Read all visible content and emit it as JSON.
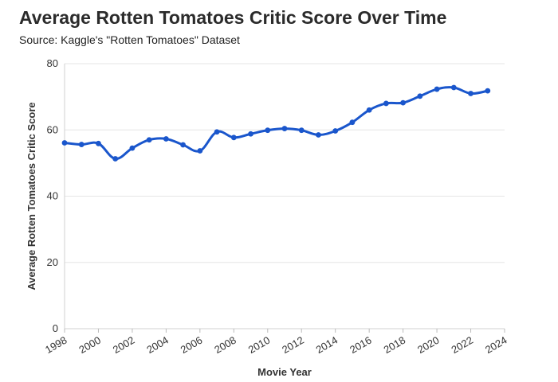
{
  "chart_data": {
    "type": "line",
    "title": "Average Rotten Tomatoes Critic Score Over Time",
    "subtitle": "Source: Kaggle's \"Rotten Tomatoes\" Dataset",
    "xlabel": "Movie Year",
    "ylabel": "Average Rotten Tomatoes Critic Score",
    "xlim": [
      1998,
      2024
    ],
    "ylim": [
      0,
      80
    ],
    "x_ticks": [
      "1998",
      "2000",
      "2002",
      "2004",
      "2006",
      "2008",
      "2010",
      "2012",
      "2014",
      "2016",
      "2018",
      "2020",
      "2022",
      "2024"
    ],
    "y_ticks": [
      "0",
      "20",
      "40",
      "60",
      "80"
    ],
    "grid": true,
    "line_color": "#1a56cc",
    "x": [
      1998,
      1999,
      2000,
      2001,
      2002,
      2003,
      2004,
      2005,
      2006,
      2007,
      2008,
      2009,
      2010,
      2011,
      2012,
      2013,
      2014,
      2015,
      2016,
      2017,
      2018,
      2019,
      2020,
      2021,
      2022,
      2023
    ],
    "values": [
      56.1,
      55.6,
      55.9,
      51.3,
      54.5,
      57.0,
      57.3,
      55.5,
      53.7,
      59.4,
      57.7,
      58.8,
      59.9,
      60.4,
      59.9,
      58.5,
      59.7,
      62.3,
      66.0,
      68.0,
      68.2,
      70.2,
      72.3,
      72.8,
      71.0,
      71.8
    ]
  }
}
